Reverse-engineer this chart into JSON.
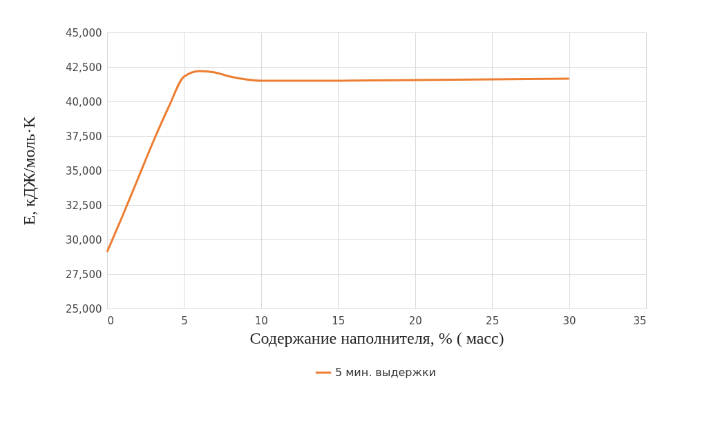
{
  "chart_data": {
    "type": "line",
    "xlabel": "Содержание наполнителя, % ( масс)",
    "ylabel": "E, кДЖ/моль·K",
    "xlim": [
      0,
      35
    ],
    "xticks": [
      0,
      5,
      10,
      15,
      20,
      25,
      30,
      35
    ],
    "ylim": [
      25000,
      45000
    ],
    "yticks": [
      {
        "value": 25000,
        "label": "25,000"
      },
      {
        "value": 27500,
        "label": "27,500"
      },
      {
        "value": 30000,
        "label": "30,000"
      },
      {
        "value": 32500,
        "label": "32,500"
      },
      {
        "value": 35000,
        "label": "35,000"
      },
      {
        "value": 37500,
        "label": "37,500"
      },
      {
        "value": 40000,
        "label": "40,000"
      },
      {
        "value": 42500,
        "label": "42,500"
      },
      {
        "value": 45000,
        "label": "45,000"
      }
    ],
    "grid": true,
    "legend": "bottom",
    "marker": "none",
    "line_style": "solid",
    "series": [
      {
        "name": "5 мин. выдержки",
        "color": "#ed7d31",
        "x": [
          0,
          1,
          2,
          3,
          4,
          5,
          6,
          7,
          8,
          9,
          10,
          15,
          20,
          25,
          30
        ],
        "values": [
          29100,
          31700,
          34400,
          37100,
          39600,
          41800,
          42200,
          42100,
          41800,
          41600,
          41500,
          41500,
          41550,
          41600,
          41650
        ]
      }
    ]
  }
}
